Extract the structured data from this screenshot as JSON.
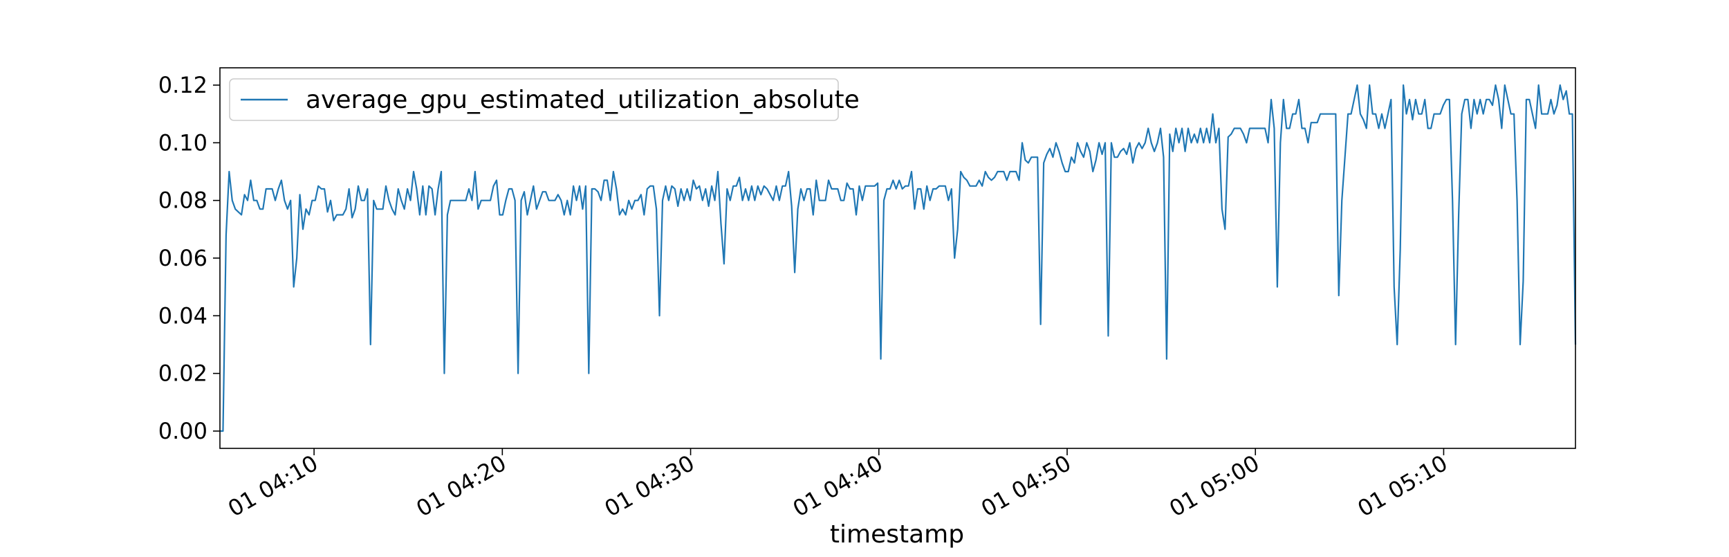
{
  "chart_data": {
    "type": "line",
    "title": "",
    "xlabel": "timestamp",
    "ylabel": "",
    "x_start": "01 04:05",
    "x_end": "01 05:17",
    "xlim": [
      "01 04:05",
      "01 05:17"
    ],
    "ylim": [
      -0.006,
      0.126
    ],
    "grid": false,
    "legend_placement": "upper left",
    "x_ticks": [
      "01 04:10",
      "01 04:20",
      "01 04:30",
      "01 04:40",
      "01 04:50",
      "01 05:00",
      "01 05:10"
    ],
    "y_ticks": [
      "0.00",
      "0.02",
      "0.04",
      "0.06",
      "0.08",
      "0.10",
      "0.12"
    ],
    "series": [
      {
        "name": "average_gpu_estimated_utilization_absolute",
        "color": "#1f77b4",
        "values": [
          0.0,
          0.0,
          0.068,
          0.09,
          0.08,
          0.077,
          0.076,
          0.075,
          0.082,
          0.08,
          0.087,
          0.08,
          0.08,
          0.077,
          0.077,
          0.084,
          0.084,
          0.084,
          0.08,
          0.084,
          0.087,
          0.08,
          0.077,
          0.08,
          0.05,
          0.06,
          0.082,
          0.07,
          0.077,
          0.075,
          0.08,
          0.08,
          0.085,
          0.084,
          0.084,
          0.076,
          0.08,
          0.073,
          0.075,
          0.075,
          0.075,
          0.077,
          0.084,
          0.074,
          0.077,
          0.085,
          0.08,
          0.08,
          0.084,
          0.03,
          0.08,
          0.077,
          0.077,
          0.077,
          0.085,
          0.08,
          0.077,
          0.075,
          0.084,
          0.08,
          0.077,
          0.084,
          0.08,
          0.09,
          0.084,
          0.075,
          0.085,
          0.075,
          0.085,
          0.084,
          0.075,
          0.084,
          0.09,
          0.02,
          0.075,
          0.08,
          0.08,
          0.08,
          0.08,
          0.08,
          0.08,
          0.084,
          0.08,
          0.09,
          0.077,
          0.08,
          0.08,
          0.08,
          0.08,
          0.085,
          0.087,
          0.075,
          0.075,
          0.08,
          0.084,
          0.084,
          0.08,
          0.02,
          0.08,
          0.083,
          0.075,
          0.08,
          0.085,
          0.077,
          0.08,
          0.083,
          0.083,
          0.08,
          0.08,
          0.08,
          0.082,
          0.08,
          0.075,
          0.08,
          0.075,
          0.085,
          0.08,
          0.085,
          0.077,
          0.085,
          0.02,
          0.084,
          0.084,
          0.083,
          0.08,
          0.087,
          0.087,
          0.08,
          0.09,
          0.084,
          0.075,
          0.077,
          0.075,
          0.08,
          0.077,
          0.08,
          0.08,
          0.082,
          0.075,
          0.084,
          0.085,
          0.085,
          0.077,
          0.04,
          0.08,
          0.085,
          0.08,
          0.085,
          0.084,
          0.078,
          0.084,
          0.08,
          0.084,
          0.08,
          0.087,
          0.084,
          0.085,
          0.08,
          0.084,
          0.078,
          0.085,
          0.08,
          0.09,
          0.072,
          0.058,
          0.084,
          0.08,
          0.085,
          0.085,
          0.088,
          0.08,
          0.084,
          0.08,
          0.085,
          0.08,
          0.085,
          0.082,
          0.085,
          0.084,
          0.082,
          0.08,
          0.085,
          0.08,
          0.085,
          0.085,
          0.09,
          0.078,
          0.055,
          0.077,
          0.084,
          0.08,
          0.084,
          0.084,
          0.075,
          0.087,
          0.08,
          0.08,
          0.08,
          0.087,
          0.084,
          0.084,
          0.084,
          0.08,
          0.08,
          0.086,
          0.084,
          0.084,
          0.075,
          0.085,
          0.08,
          0.085,
          0.085,
          0.085,
          0.085,
          0.086,
          0.025,
          0.08,
          0.084,
          0.084,
          0.087,
          0.084,
          0.087,
          0.084,
          0.085,
          0.085,
          0.09,
          0.077,
          0.084,
          0.084,
          0.077,
          0.085,
          0.08,
          0.084,
          0.084,
          0.085,
          0.085,
          0.085,
          0.08,
          0.084,
          0.06,
          0.07,
          0.09,
          0.088,
          0.087,
          0.085,
          0.085,
          0.085,
          0.087,
          0.085,
          0.09,
          0.088,
          0.087,
          0.088,
          0.09,
          0.09,
          0.09,
          0.087,
          0.09,
          0.09,
          0.09,
          0.087,
          0.1,
          0.094,
          0.093,
          0.095,
          0.095,
          0.095,
          0.037,
          0.093,
          0.096,
          0.098,
          0.095,
          0.1,
          0.097,
          0.093,
          0.09,
          0.09,
          0.095,
          0.093,
          0.1,
          0.097,
          0.095,
          0.1,
          0.097,
          0.09,
          0.094,
          0.1,
          0.096,
          0.1,
          0.033,
          0.1,
          0.095,
          0.095,
          0.097,
          0.098,
          0.096,
          0.1,
          0.093,
          0.098,
          0.1,
          0.098,
          0.1,
          0.105,
          0.1,
          0.097,
          0.1,
          0.105,
          0.095,
          0.025,
          0.103,
          0.097,
          0.105,
          0.1,
          0.105,
          0.097,
          0.105,
          0.1,
          0.103,
          0.1,
          0.105,
          0.1,
          0.105,
          0.1,
          0.11,
          0.1,
          0.105,
          0.077,
          0.07,
          0.102,
          0.103,
          0.105,
          0.105,
          0.105,
          0.103,
          0.1,
          0.105,
          0.105,
          0.105,
          0.105,
          0.105,
          0.105,
          0.1,
          0.115,
          0.105,
          0.05,
          0.1,
          0.115,
          0.105,
          0.105,
          0.11,
          0.11,
          0.115,
          0.105,
          0.105,
          0.1,
          0.107,
          0.107,
          0.107,
          0.11,
          0.11,
          0.11,
          0.11,
          0.11,
          0.11,
          0.047,
          0.08,
          0.095,
          0.11,
          0.11,
          0.115,
          0.12,
          0.11,
          0.108,
          0.105,
          0.12,
          0.11,
          0.11,
          0.105,
          0.11,
          0.105,
          0.11,
          0.115,
          0.05,
          0.03,
          0.063,
          0.12,
          0.11,
          0.115,
          0.108,
          0.115,
          0.11,
          0.11,
          0.115,
          0.105,
          0.105,
          0.11,
          0.11,
          0.11,
          0.113,
          0.115,
          0.115,
          0.08,
          0.03,
          0.075,
          0.11,
          0.115,
          0.115,
          0.105,
          0.115,
          0.11,
          0.115,
          0.11,
          0.115,
          0.115,
          0.113,
          0.12,
          0.115,
          0.105,
          0.12,
          0.115,
          0.11,
          0.11,
          0.08,
          0.03,
          0.052,
          0.115,
          0.115,
          0.11,
          0.105,
          0.12,
          0.11,
          0.11,
          0.11,
          0.115,
          0.11,
          0.113,
          0.12,
          0.115,
          0.118,
          0.11,
          0.11,
          0.03
        ]
      }
    ]
  }
}
